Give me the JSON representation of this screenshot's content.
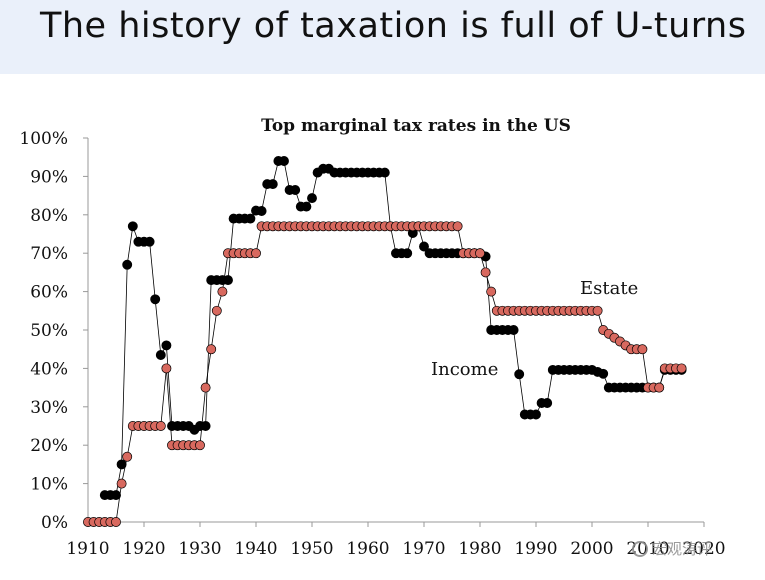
{
  "header": {
    "title": "The history of taxation is full of U-turns"
  },
  "watermark": {
    "text": "宏观涛评"
  },
  "chart_data": {
    "type": "line",
    "title": "Top marginal tax rates in the US",
    "xlabel": "",
    "ylabel": "",
    "xlim": [
      1910,
      2020
    ],
    "ylim": [
      0,
      100
    ],
    "x_ticks": [
      "1910",
      "1920",
      "1930",
      "1940",
      "1950",
      "1960",
      "1970",
      "1980",
      "1990",
      "2000",
      "2010",
      "2020"
    ],
    "y_ticks": [
      "0%",
      "10%",
      "20%",
      "30%",
      "40%",
      "50%",
      "60%",
      "70%",
      "80%",
      "90%",
      "100%"
    ],
    "grid": false,
    "legend": "inline labels",
    "series": [
      {
        "name": "Income",
        "color": "#000000",
        "x": [
          1913,
          1914,
          1915,
          1916,
          1917,
          1918,
          1919,
          1920,
          1921,
          1922,
          1923,
          1924,
          1925,
          1926,
          1927,
          1928,
          1929,
          1930,
          1931,
          1932,
          1933,
          1934,
          1935,
          1936,
          1937,
          1938,
          1939,
          1940,
          1941,
          1942,
          1943,
          1944,
          1945,
          1946,
          1947,
          1948,
          1949,
          1950,
          1951,
          1952,
          1953,
          1954,
          1955,
          1956,
          1957,
          1958,
          1959,
          1960,
          1961,
          1962,
          1963,
          1964,
          1965,
          1966,
          1967,
          1968,
          1969,
          1970,
          1971,
          1972,
          1973,
          1974,
          1975,
          1976,
          1977,
          1978,
          1979,
          1980,
          1981,
          1982,
          1983,
          1984,
          1985,
          1986,
          1987,
          1988,
          1989,
          1990,
          1991,
          1992,
          1993,
          1994,
          1995,
          1996,
          1997,
          1998,
          1999,
          2000,
          2001,
          2002,
          2003,
          2004,
          2005,
          2006,
          2007,
          2008,
          2009,
          2010,
          2011,
          2012,
          2013,
          2014,
          2015,
          2016
        ],
        "values": [
          7,
          7,
          7,
          15,
          67,
          77,
          73,
          73,
          73,
          58,
          43.5,
          46,
          25,
          25,
          25,
          25,
          24,
          25,
          25,
          63,
          63,
          63,
          63,
          79,
          79,
          79,
          79,
          81.1,
          81,
          88,
          88,
          94,
          94,
          86.45,
          86.45,
          82.13,
          82.13,
          84.36,
          91,
          92,
          92,
          91,
          91,
          91,
          91,
          91,
          91,
          91,
          91,
          91,
          91,
          77,
          70,
          70,
          70,
          75.25,
          77,
          71.75,
          70,
          70,
          70,
          70,
          70,
          70,
          70,
          70,
          70,
          70,
          69.13,
          50,
          50,
          50,
          50,
          50,
          38.5,
          28,
          28,
          28,
          31,
          31,
          39.6,
          39.6,
          39.6,
          39.6,
          39.6,
          39.6,
          39.6,
          39.6,
          39.1,
          38.6,
          35,
          35,
          35,
          35,
          35,
          35,
          35,
          35,
          35,
          35,
          39.6,
          39.6,
          39.6,
          39.6
        ]
      },
      {
        "name": "Estate",
        "color": "#d8695f",
        "x": [
          1910,
          1911,
          1912,
          1913,
          1914,
          1915,
          1916,
          1917,
          1918,
          1919,
          1920,
          1921,
          1922,
          1923,
          1924,
          1925,
          1926,
          1927,
          1928,
          1929,
          1930,
          1931,
          1932,
          1933,
          1934,
          1935,
          1936,
          1937,
          1938,
          1939,
          1940,
          1941,
          1942,
          1943,
          1944,
          1945,
          1946,
          1947,
          1948,
          1949,
          1950,
          1951,
          1952,
          1953,
          1954,
          1955,
          1956,
          1957,
          1958,
          1959,
          1960,
          1961,
          1962,
          1963,
          1964,
          1965,
          1966,
          1967,
          1968,
          1969,
          1970,
          1971,
          1972,
          1973,
          1974,
          1975,
          1976,
          1977,
          1978,
          1979,
          1980,
          1981,
          1982,
          1983,
          1984,
          1985,
          1986,
          1987,
          1988,
          1989,
          1990,
          1991,
          1992,
          1993,
          1994,
          1995,
          1996,
          1997,
          1998,
          1999,
          2000,
          2001,
          2002,
          2003,
          2004,
          2005,
          2006,
          2007,
          2008,
          2009,
          2010,
          2011,
          2012,
          2013,
          2014,
          2015,
          2016
        ],
        "values": [
          0,
          0,
          0,
          0,
          0,
          0,
          10,
          17,
          25,
          25,
          25,
          25,
          25,
          25,
          40,
          20,
          20,
          20,
          20,
          20,
          20,
          35,
          45,
          55,
          60,
          70,
          70,
          70,
          70,
          70,
          70,
          77,
          77,
          77,
          77,
          77,
          77,
          77,
          77,
          77,
          77,
          77,
          77,
          77,
          77,
          77,
          77,
          77,
          77,
          77,
          77,
          77,
          77,
          77,
          77,
          77,
          77,
          77,
          77,
          77,
          77,
          77,
          77,
          77,
          77,
          77,
          77,
          70,
          70,
          70,
          70,
          65,
          60,
          55,
          55,
          55,
          55,
          55,
          55,
          55,
          55,
          55,
          55,
          55,
          55,
          55,
          55,
          55,
          55,
          55,
          55,
          55,
          50,
          49,
          48,
          47,
          46,
          45,
          45,
          45,
          35,
          35,
          35,
          40,
          40,
          40,
          40
        ]
      }
    ]
  }
}
